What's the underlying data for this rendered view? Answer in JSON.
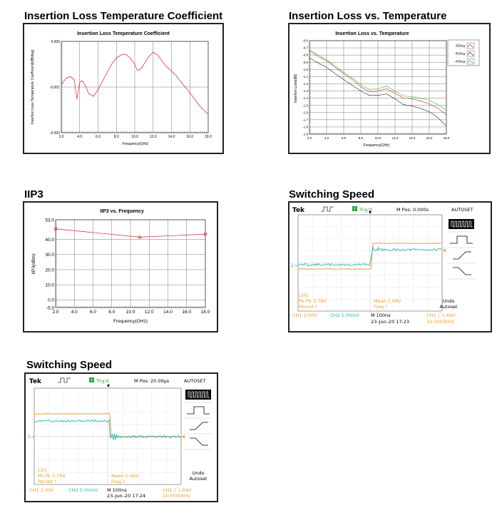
{
  "headings": {
    "ilcoef": "Insertion Loss Temperature Coefficient",
    "ilvt": "Insertion Loss vs. Temperature",
    "iip3": "IIP3",
    "sw1": "Switching Speed",
    "sw2": "Switching Speed"
  },
  "chart_data": [
    {
      "id": "ilcoef",
      "type": "line",
      "title": "Insertion Loss Temperature Coefficient",
      "xlabel": "Frequency(GHz)",
      "ylabel": "Insertion Loss Temperature Coefficient(dB/deg)",
      "xlim": [
        2.0,
        18.0
      ],
      "ylim": [
        -0.002,
        0.0
      ],
      "xticks": [
        "2.0",
        "4.0",
        "6.0",
        "8.0",
        "10.0",
        "12.0",
        "14.0",
        "16.0",
        "18.0"
      ],
      "yticks": [
        "0.000",
        "-0.001",
        "-0.002"
      ],
      "grid": true,
      "color": "#e0202a",
      "series": [
        {
          "x": [
            2.0,
            2.5,
            3.0,
            3.4,
            3.7,
            4.0,
            4.3,
            4.7,
            5.0,
            5.5,
            6.0,
            6.5,
            7.0,
            7.5,
            8.0,
            8.5,
            9.0,
            9.5,
            10.0,
            10.3,
            10.7,
            11.0,
            11.5,
            12.0,
            12.5,
            13.0,
            13.5,
            14.0,
            14.5,
            15.0,
            15.5,
            16.0,
            16.5,
            17.0,
            17.5,
            18.0
          ],
          "y": [
            -0.00095,
            -0.00081,
            -0.00077,
            -0.00084,
            -0.00126,
            -0.0009,
            -0.00086,
            -0.001,
            -0.00115,
            -0.0012,
            -0.00106,
            -0.00087,
            -0.00068,
            -0.0005,
            -0.00036,
            -0.0003,
            -0.00028,
            -0.00036,
            -0.0005,
            -0.00064,
            -0.0006,
            -0.0005,
            -0.00034,
            -0.00024,
            -0.0003,
            -0.00044,
            -0.00056,
            -0.00065,
            -0.00075,
            -0.00088,
            -0.001,
            -0.00113,
            -0.00126,
            -0.0014,
            -0.0015,
            -0.0016
          ]
        }
      ]
    },
    {
      "id": "ilvt",
      "type": "line",
      "title": "Insertion Loss vs. Temperature",
      "xlabel": "Frequency(GHz)",
      "ylabel": "Insertion Loss(dB)",
      "xlim": [
        2.0,
        18.0
      ],
      "ylim": [
        -1.9,
        -0.6
      ],
      "xticks": [
        "2.0",
        "4.0",
        "6.0",
        "8.0",
        "10.0",
        "12.0",
        "14.0",
        "16.0",
        "18.0"
      ],
      "yticks": [
        "-0.6",
        "-0.7",
        "-0.8",
        "-0.9",
        "-1.0",
        "-1.1",
        "-1.2",
        "-1.3",
        "-1.4",
        "-1.5",
        "-1.6",
        "-1.7",
        "-1.8",
        "-1.9"
      ],
      "grid": true,
      "legend_position": "top-right",
      "series": [
        {
          "name": "25Deg",
          "color": "#e0202a",
          "x": [
            2.0,
            3.0,
            4.0,
            5.0,
            6.0,
            7.0,
            8.0,
            9.0,
            10.0,
            11.0,
            12.0,
            13.0,
            14.0,
            15.0,
            16.0,
            17.0,
            18.0
          ],
          "y": [
            -0.74,
            -0.82,
            -0.88,
            -0.97,
            -1.06,
            -1.14,
            -1.24,
            -1.31,
            -1.3,
            -1.27,
            -1.33,
            -1.4,
            -1.41,
            -1.44,
            -1.48,
            -1.54,
            -1.63
          ]
        },
        {
          "name": "85Deg",
          "color": "#222222",
          "x": [
            2.0,
            3.0,
            4.0,
            5.0,
            6.0,
            7.0,
            8.0,
            9.0,
            10.0,
            11.0,
            12.0,
            13.0,
            14.0,
            15.0,
            16.0,
            17.0,
            18.0
          ],
          "y": [
            -0.84,
            -0.91,
            -0.97,
            -1.06,
            -1.14,
            -1.22,
            -1.3,
            -1.36,
            -1.36,
            -1.34,
            -1.41,
            -1.49,
            -1.51,
            -1.54,
            -1.59,
            -1.67,
            -1.79
          ]
        },
        {
          "name": "-40Deg",
          "color": "#30c030",
          "x": [
            2.0,
            3.0,
            4.0,
            5.0,
            6.0,
            7.0,
            8.0,
            9.0,
            10.0,
            11.0,
            12.0,
            13.0,
            14.0,
            15.0,
            16.0,
            17.0,
            18.0
          ],
          "y": [
            -0.72,
            -0.8,
            -0.86,
            -0.95,
            -1.04,
            -1.12,
            -1.21,
            -1.28,
            -1.27,
            -1.23,
            -1.3,
            -1.37,
            -1.38,
            -1.4,
            -1.43,
            -1.49,
            -1.57
          ]
        }
      ]
    },
    {
      "id": "iip3",
      "type": "line",
      "title": "IIP3 vs. Frequency",
      "xlabel": "Frequency(GHz)",
      "ylabel": "IIP3(dBm)",
      "xlim": [
        2.0,
        18.0
      ],
      "ylim": [
        -5.0,
        53.0
      ],
      "xticks": [
        "2.0",
        "4.0",
        "6.0",
        "8.0",
        "10.0",
        "12.0",
        "14.0",
        "16.0",
        "18.0"
      ],
      "ytick_values": [
        53,
        40,
        30,
        20,
        10,
        0,
        -5
      ],
      "yticks": [
        "53.0",
        "40.0",
        "30.0",
        "20.0",
        "10.0",
        "0.0",
        "-5.0"
      ],
      "grid": true,
      "color": "#e0202a",
      "series": [
        {
          "x": [
            2.0,
            11.0,
            18.0
          ],
          "y": [
            47.0,
            41.5,
            43.5
          ]
        }
      ]
    }
  ],
  "scope1": {
    "brand": "Tek",
    "trig": "Trig'd",
    "mpos": "M Pos: 0.000s",
    "autoset": "AUTOSET",
    "undo1": "Undo",
    "undo2": "Autoset",
    "ch1": "CH1",
    "pkpk": "Pk-Pk 3.76V",
    "period": "Period ?",
    "mean": "Mean 1.68V",
    "freq": "Freq ?",
    "ch1scale": "CH1  2.00V",
    "ch2scale": "CH2  5.00mV",
    "mtime": "M 100ns",
    "date": "23–Jun–20 17:23",
    "trigset": "CH1  ╱  1.69V",
    "trigfreq": "10.0000kHz",
    "marker2": "2→"
  },
  "scope2": {
    "brand": "Tek",
    "trig": "Trig'd",
    "mpos": "M Pos: 20.00µs",
    "autoset": "AUTOSET",
    "undo1": "Undo",
    "undo2": "Autoset",
    "ch1": "CH1",
    "pkpk": "Pk-Pk 3.76V",
    "period": "Period ?",
    "mean": "Mean 1.66V",
    "freq": "Freq ?",
    "ch1scale": "CH1  2.00V",
    "ch2scale": "CH2  5.00mV",
    "mtime": "M 100ns",
    "date": "23–Jun–20 17:24",
    "trigset": "CH1  ╱  1.69V",
    "trigfreq": "10.0000kHz",
    "marker2": "2→"
  },
  "colors": {
    "ch1": "#f0a020",
    "ch2": "#20b8c0",
    "grid_scope": "#999999"
  }
}
